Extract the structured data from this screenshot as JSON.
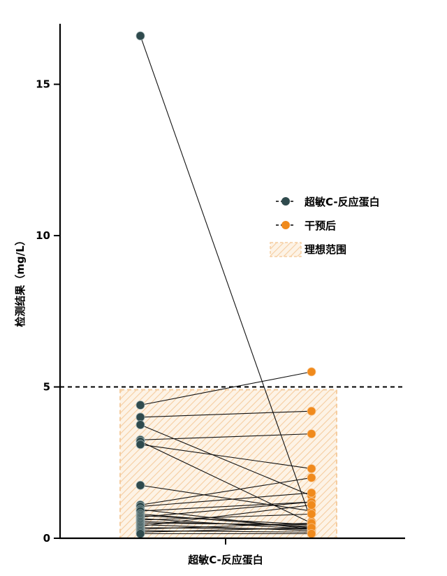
{
  "chart_data": {
    "type": "paired-dot",
    "xlabel": "超敏C-反应蛋白",
    "ylabel": "检测结果（mg/L）",
    "ylim": [
      0,
      17
    ],
    "yticks": [
      0,
      5,
      10,
      15
    ],
    "reference_line": {
      "y": 5,
      "style": "dashed"
    },
    "ideal_range": {
      "y": [
        0,
        5
      ],
      "label": "理想范围"
    },
    "legend_position": "right-middle",
    "series": [
      {
        "name": "超敏C-反应蛋白",
        "color": "#2f4a4d",
        "values": [
          16.6,
          4.4,
          4.0,
          3.75,
          3.25,
          3.2,
          3.1,
          1.75,
          1.1,
          1.05,
          0.95,
          0.9,
          0.8,
          0.75,
          0.7,
          0.65,
          0.6,
          0.55,
          0.5,
          0.45,
          0.4,
          0.35,
          0.3,
          0.25,
          0.2,
          0.15
        ]
      },
      {
        "name": "干预后",
        "color": "#f08a1c",
        "values": [
          0.55,
          5.5,
          4.2,
          1.4,
          3.45,
          0.5,
          2.3,
          0.9,
          2.0,
          1.5,
          0.3,
          1.2,
          0.35,
          0.45,
          1.2,
          0.3,
          0.8,
          0.4,
          0.45,
          0.25,
          1.1,
          0.3,
          0.5,
          0.2,
          0.35,
          0.15
        ]
      }
    ]
  },
  "colors": {
    "hatch": "#f5cda0",
    "hatch_fill": "#fdf3e6"
  }
}
